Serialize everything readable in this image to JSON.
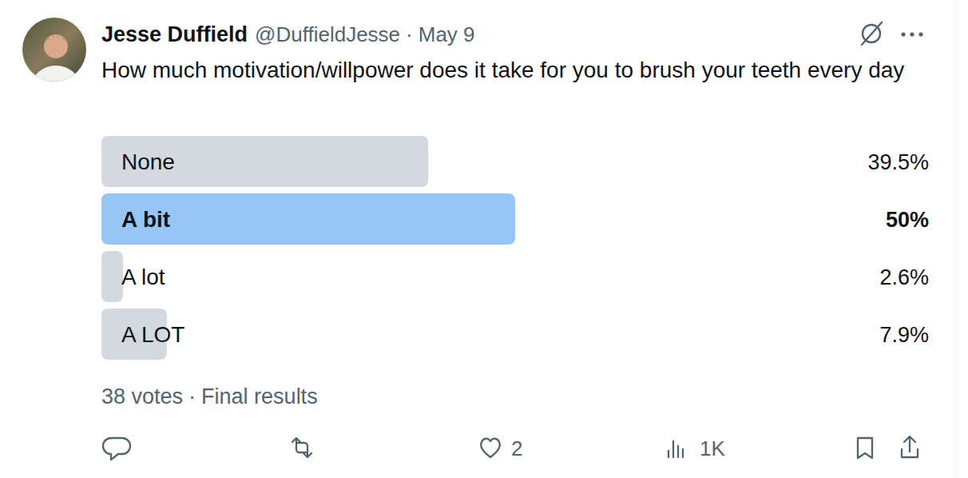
{
  "tweet": {
    "author_name": "Jesse Duffield",
    "handle": "@DuffieldJesse",
    "separator": "·",
    "date": "May 9",
    "text": "How much motivation/willpower does it take for you to brush your teeth every day",
    "votes": "38 votes",
    "status": "Final results",
    "likes": 2,
    "views": "1K"
  },
  "chart_data": {
    "type": "bar",
    "orientation": "horizontal",
    "categories": [
      "None",
      "A bit",
      "A lot",
      "A LOT"
    ],
    "values": [
      39.5,
      50,
      2.6,
      7.9
    ],
    "value_labels": [
      "39.5%",
      "50%",
      "2.6%",
      "7.9%"
    ],
    "colors": [
      "#d3d9df",
      "#98c6f4",
      "#d3d9df",
      "#d3d9df"
    ],
    "xlim": [
      0,
      100
    ],
    "data_labels": true
  }
}
